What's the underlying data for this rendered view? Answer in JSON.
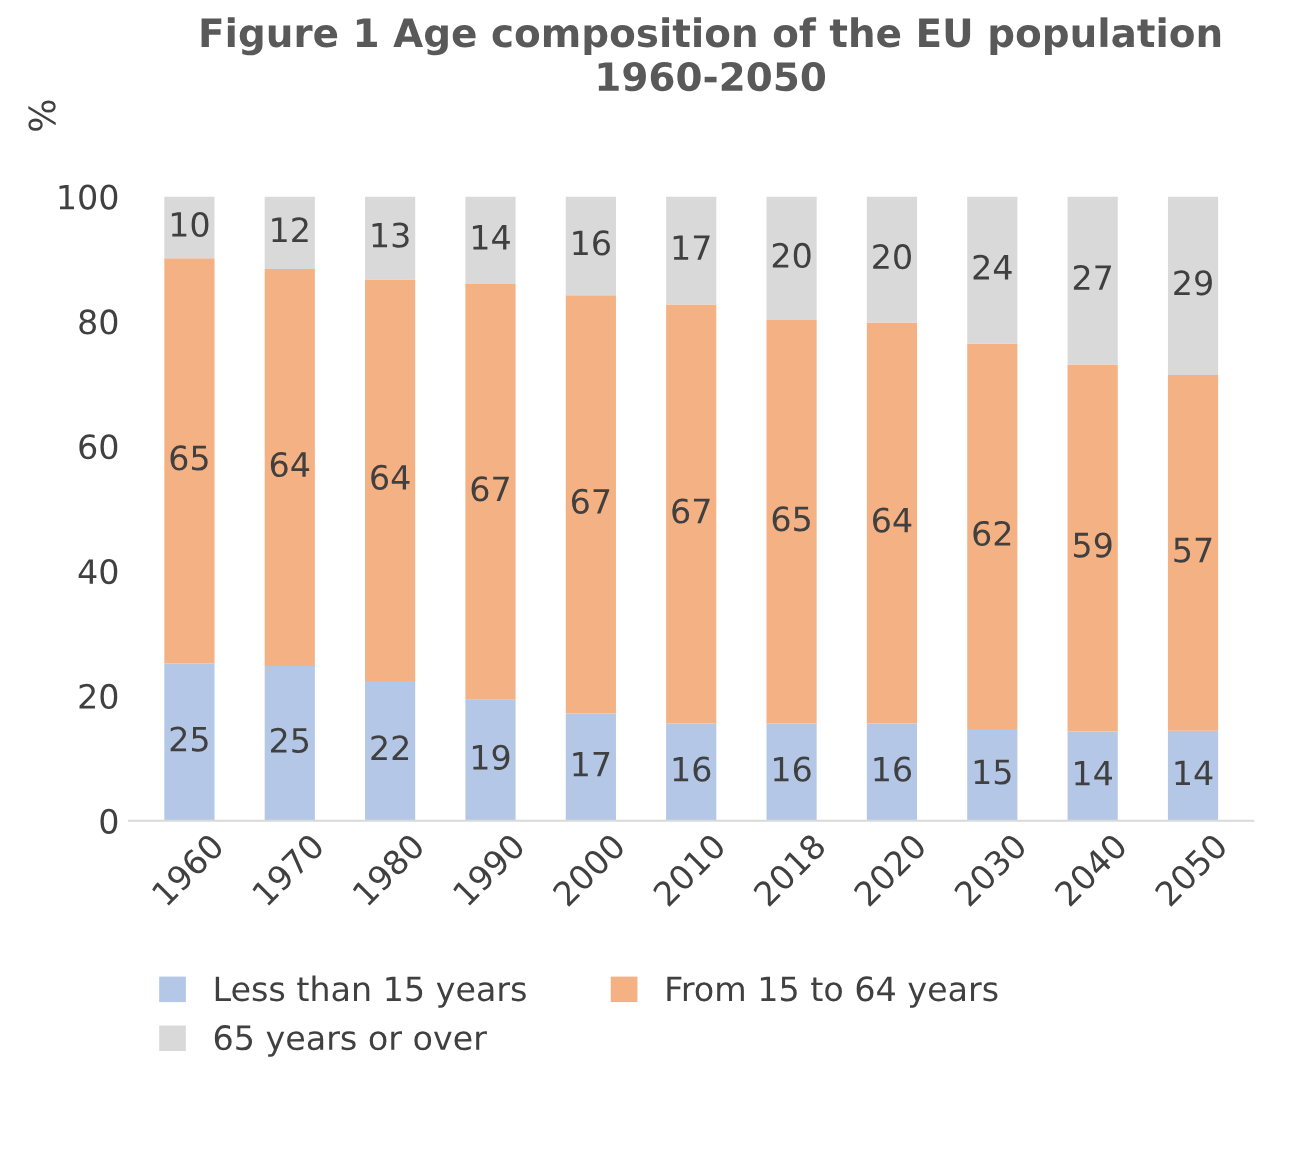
{
  "chart_data": {
    "type": "bar",
    "title": "Figure 1 Age composition of the EU population\n1960-2050",
    "ylabel": "%",
    "categories": [
      "1960",
      "1970",
      "1980",
      "1990",
      "2000",
      "2010",
      "2018",
      "2020",
      "2030",
      "2040",
      "2050"
    ],
    "stacked": true,
    "ylim": [
      0,
      100
    ],
    "yticks": [
      0,
      20,
      40,
      60,
      80,
      100
    ],
    "grid": false,
    "legend": "bottom",
    "series": [
      {
        "name": "Less than 15 years",
        "color": "#b4c7e7",
        "values": [
          25.2,
          24.8,
          22.4,
          19.4,
          17.2,
          15.6,
          15.6,
          15.6,
          14.7,
          14.3,
          14.4
        ],
        "value_labels": [
          "25",
          "25",
          "22",
          "19",
          "17",
          "16",
          "16",
          "16",
          "15",
          "14",
          "14"
        ]
      },
      {
        "name": "From 15 to 64 years",
        "color": "#f4b183",
        "values": [
          64.9,
          63.6,
          64.3,
          66.6,
          67.0,
          67.1,
          64.6,
          64.2,
          61.7,
          58.8,
          57.0
        ],
        "value_labels": [
          "65",
          "64",
          "64",
          "67",
          "67",
          "67",
          "65",
          "64",
          "62",
          "59",
          "57"
        ]
      },
      {
        "name": "65 years or over",
        "color": "#d9d9d9",
        "values": [
          9.9,
          11.6,
          13.3,
          14.0,
          15.8,
          17.3,
          19.8,
          20.2,
          23.6,
          26.9,
          28.6
        ],
        "value_labels": [
          "10",
          "12",
          "13",
          "14",
          "16",
          "17",
          "20",
          "20",
          "24",
          "27",
          "29"
        ]
      }
    ]
  }
}
